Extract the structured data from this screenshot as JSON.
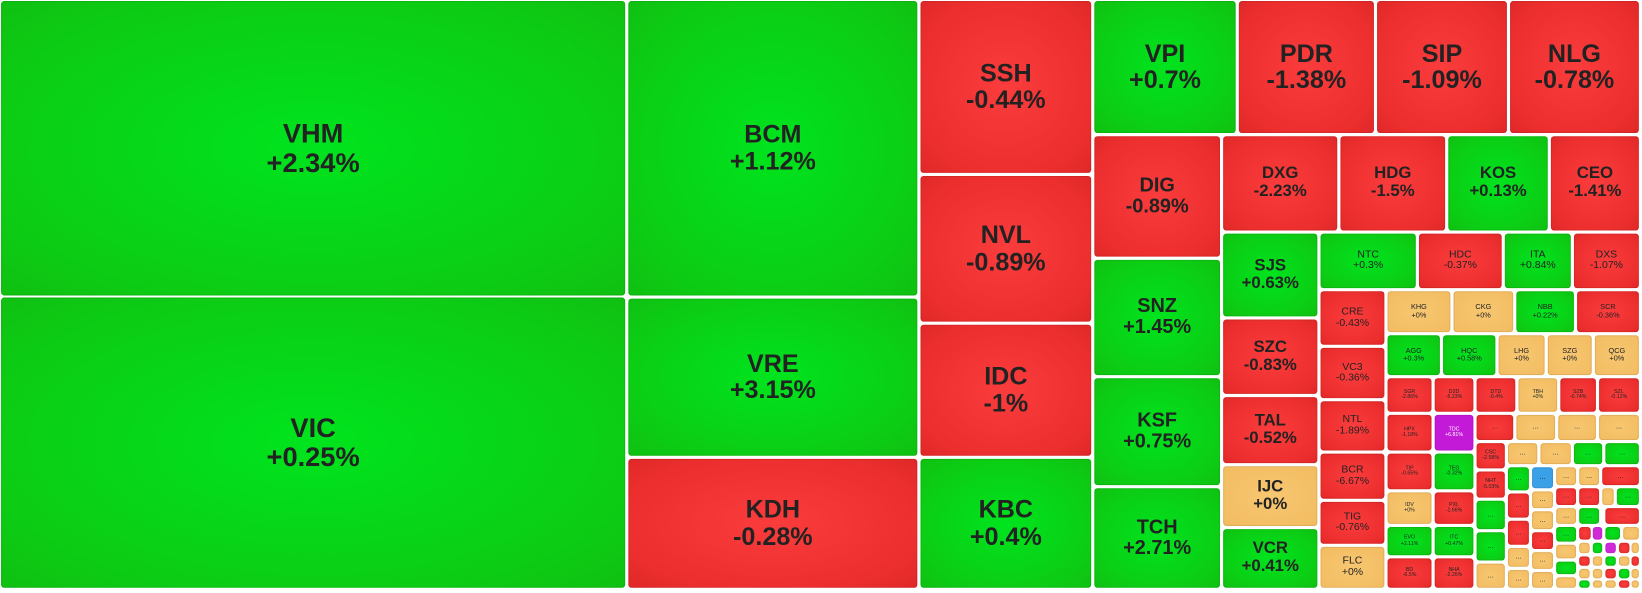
{
  "tiles": [
    {
      "ticker": "VHM",
      "change": "+2.34%"
    },
    {
      "ticker": "VIC",
      "change": "+0.25%"
    },
    {
      "ticker": "BCM",
      "change": "+1.12%"
    },
    {
      "ticker": "VRE",
      "change": "+3.15%"
    },
    {
      "ticker": "KDH",
      "change": "-0.28%"
    },
    {
      "ticker": "SSH",
      "change": "-0.44%"
    },
    {
      "ticker": "NVL",
      "change": "-0.89%"
    },
    {
      "ticker": "IDC",
      "change": "-1%"
    },
    {
      "ticker": "KBC",
      "change": "+0.4%"
    },
    {
      "ticker": "VPI",
      "change": "+0.7%"
    },
    {
      "ticker": "PDR",
      "change": "-1.38%"
    },
    {
      "ticker": "SIP",
      "change": "-1.09%"
    },
    {
      "ticker": "NLG",
      "change": "-0.78%"
    },
    {
      "ticker": "DIG",
      "change": "-0.89%"
    },
    {
      "ticker": "SNZ",
      "change": "+1.45%"
    },
    {
      "ticker": "KSF",
      "change": "+0.75%"
    },
    {
      "ticker": "TCH",
      "change": "+2.71%"
    },
    {
      "ticker": "DXG",
      "change": "-2.23%"
    },
    {
      "ticker": "HDG",
      "change": "-1.5%"
    },
    {
      "ticker": "KOS",
      "change": "+0.13%"
    },
    {
      "ticker": "CEO",
      "change": "-1.41%"
    },
    {
      "ticker": "SJS",
      "change": "+0.63%"
    },
    {
      "ticker": "SZC",
      "change": "-0.83%"
    },
    {
      "ticker": "TAL",
      "change": "-0.52%"
    },
    {
      "ticker": "IJC",
      "change": "+0%"
    },
    {
      "ticker": "VCR",
      "change": "+0.41%"
    },
    {
      "ticker": "NTC",
      "change": "+0.3%"
    },
    {
      "ticker": "HDC",
      "change": "-0.37%"
    },
    {
      "ticker": "ITA",
      "change": "+0.84%"
    },
    {
      "ticker": "DXS",
      "change": "-1.07%"
    },
    {
      "ticker": "CRE",
      "change": "-0.43%"
    },
    {
      "ticker": "VC3",
      "change": "-0.36%"
    },
    {
      "ticker": "NTL",
      "change": "-1.89%"
    },
    {
      "ticker": "BCR",
      "change": "-6.67%"
    },
    {
      "ticker": "TIG",
      "change": "-0.76%"
    },
    {
      "ticker": "FLC",
      "change": "+0%"
    },
    {
      "ticker": "KHG",
      "change": "+0%"
    },
    {
      "ticker": "CKG",
      "change": "+0%"
    },
    {
      "ticker": "NBB",
      "change": "+0.22%"
    },
    {
      "ticker": "SCR",
      "change": "-0.36%"
    },
    {
      "ticker": "AGG",
      "change": "+0.3%"
    },
    {
      "ticker": "HQC",
      "change": "+0.58%"
    },
    {
      "ticker": "LHG",
      "change": "+0%"
    },
    {
      "ticker": "SZG",
      "change": "+0%"
    },
    {
      "ticker": "QCG",
      "change": "+0%"
    },
    {
      "ticker": "SGR",
      "change": "-2.86%"
    },
    {
      "ticker": "D2D",
      "change": "-5.23%"
    },
    {
      "ticker": "DTD",
      "change": "-0.4%"
    },
    {
      "ticker": "TBH",
      "change": "+0%"
    },
    {
      "ticker": "SZB",
      "change": "-0.74%"
    },
    {
      "ticker": "SZL",
      "change": "-0.12%"
    },
    {
      "ticker": "HPX",
      "change": "-1.18%"
    },
    {
      "ticker": "TDC",
      "change": "+6.81%"
    },
    {
      "ticker": "TIP",
      "change": "-0.65%"
    },
    {
      "ticker": "TEG",
      "change": "-0.32%"
    },
    {
      "ticker": "CSC",
      "change": "-2.58%"
    },
    {
      "ticker": "NHT",
      "change": "-5.03%"
    },
    {
      "ticker": "IDV",
      "change": "+0%"
    },
    {
      "ticker": "PXL",
      "change": "-1.66%"
    },
    {
      "ticker": "EVO",
      "change": "+2.11%"
    },
    {
      "ticker": "ITC",
      "change": "+0.47%"
    },
    {
      "ticker": "BD",
      "change": "-6.5%"
    },
    {
      "ticker": "NHA",
      "change": "-2.26%"
    }
  ],
  "more": "..."
}
